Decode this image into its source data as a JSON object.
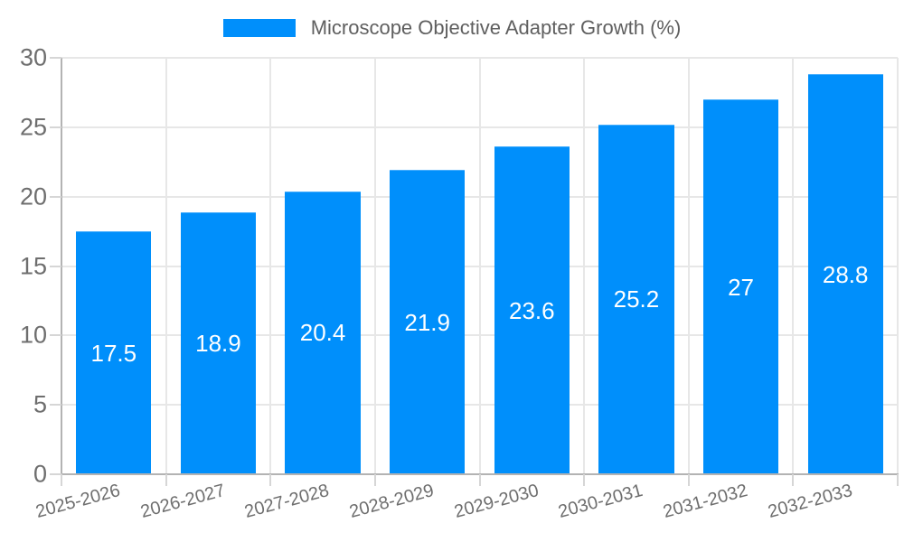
{
  "chart_data": {
    "type": "bar",
    "title": "",
    "xlabel": "",
    "ylabel": "",
    "categories": [
      "2025-2026",
      "2026-2027",
      "2027-2028",
      "2028-2029",
      "2029-2030",
      "2030-2031",
      "2031-2032",
      "2032-2033"
    ],
    "series": [
      {
        "name": "Microscope Objective Adapter Growth (%)",
        "values": [
          17.5,
          18.9,
          20.4,
          21.9,
          23.6,
          25.2,
          27,
          28.8
        ],
        "value_labels": [
          "17.5",
          "18.9",
          "20.4",
          "21.9",
          "23.6",
          "25.2",
          "27",
          "28.8"
        ]
      }
    ],
    "ylim": [
      0,
      30
    ],
    "yticks": [
      0,
      5,
      10,
      15,
      20,
      25,
      30
    ],
    "grid": true,
    "legend_position": "top",
    "x_label_rotation_deg": -15,
    "colors": {
      "bar": "#008FFB",
      "grid": "#e7e7e7",
      "axis": "#b3b3b3",
      "tickmark": "#d6d6d6",
      "ticklabel": "#6e6e6e",
      "legendtext": "#5f5f5f",
      "valuelabel": "#ffffff"
    }
  }
}
